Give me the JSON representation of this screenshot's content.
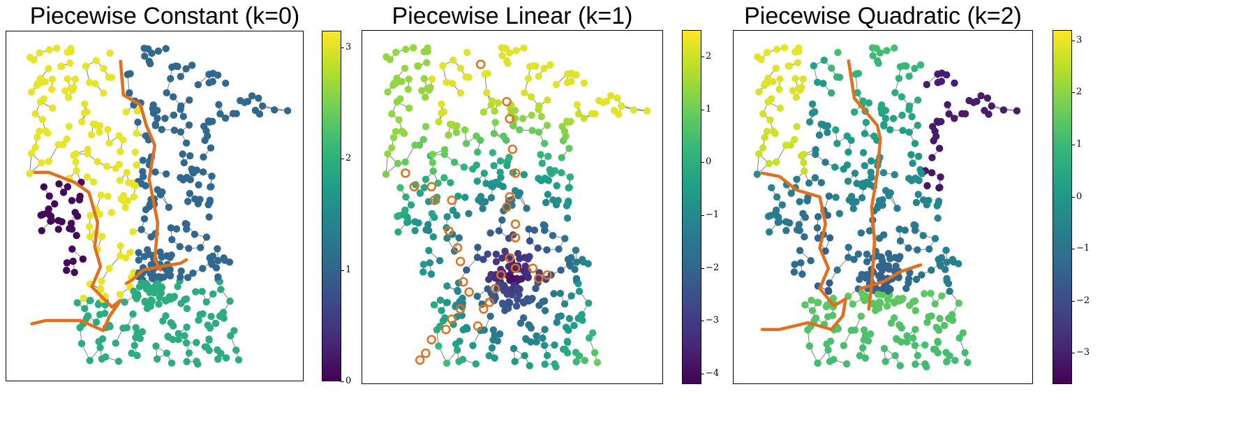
{
  "colors": {
    "viridis": [
      "#440154",
      "#482878",
      "#3e4989",
      "#31688e",
      "#26828e",
      "#1f9e89",
      "#35b779",
      "#6ece58",
      "#b5de2b",
      "#fde725"
    ],
    "boundary": "#e07020",
    "edge": "#808080"
  },
  "chart_data": [
    {
      "type": "scatter",
      "title": "Piecewise Constant (k=0)",
      "colorbar": {
        "min": 0,
        "max": 3.15,
        "ticks": [
          "0",
          "1",
          "2",
          "3"
        ],
        "tick_values": [
          0,
          1,
          2,
          3
        ]
      },
      "regions": [
        {
          "name": "north-west",
          "value": 3.05
        },
        {
          "name": "north-east",
          "value": 1.05
        },
        {
          "name": "west",
          "value": 0.05
        },
        {
          "name": "south",
          "value": 1.95
        }
      ]
    },
    {
      "type": "scatter",
      "title": "Piecewise Linear (k=1)",
      "colorbar": {
        "min": -4.2,
        "max": 2.5,
        "ticks": [
          "2",
          "1",
          "0",
          "−1",
          "−2",
          "−3",
          "−4"
        ],
        "tick_values": [
          2,
          1,
          0,
          -1,
          -2,
          -3,
          -4
        ]
      },
      "highlighted_nodes": true
    },
    {
      "type": "scatter",
      "title": "Piecewise Quadratic (k=2)",
      "colorbar": {
        "min": -3.6,
        "max": 3.2,
        "ticks": [
          "3",
          "2",
          "1",
          "0",
          "−1",
          "−2",
          "−3"
        ],
        "tick_values": [
          3,
          2,
          1,
          0,
          -1,
          -2,
          -3
        ]
      }
    }
  ]
}
